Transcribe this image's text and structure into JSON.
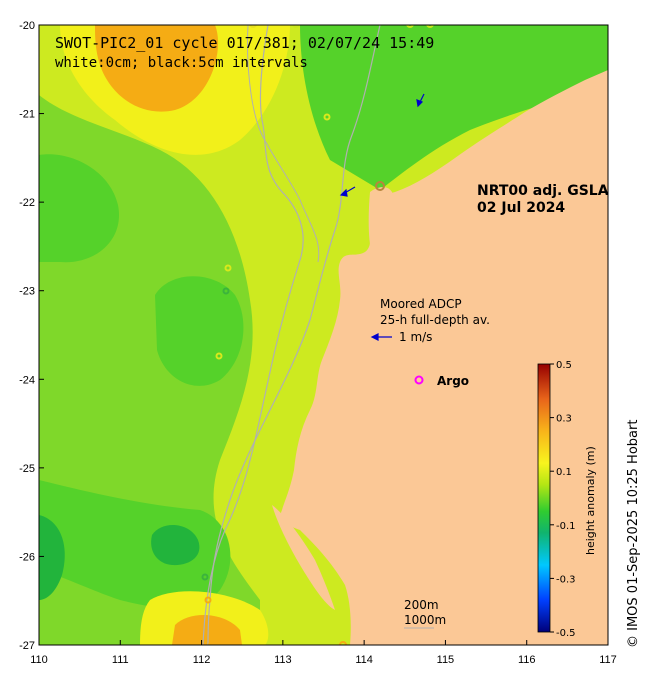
{
  "title": {
    "line1": "SWOT-PIC2_01 cycle 017/381; 02/07/24 15:49",
    "line2": "white:0cm; black:5cm intervals"
  },
  "product": {
    "line1": "NRT00 adj. GSLA",
    "line2": "02 Jul 2024"
  },
  "legend": {
    "adcp_line1": "Moored ADCP",
    "adcp_line2": "25-h full-depth av.",
    "arrow_label": "1 m/s",
    "argo_label": "Argo",
    "arrow_color": "#0000cc",
    "argo_color": "#ff00ff"
  },
  "contours": {
    "label_200": "200m",
    "label_1000": "1000m"
  },
  "colorbar": {
    "label": "height anomaly (m)",
    "ticks": [
      "0.5",
      "0.3",
      "0.1",
      "-0.1",
      "-0.3",
      "-0.5"
    ]
  },
  "copyright": "© IMOS 01-Sep-2025 10:25 Hobart",
  "axes": {
    "lon_ticks": [
      "110",
      "111",
      "112",
      "113",
      "114",
      "115",
      "116",
      "117"
    ],
    "lat_ticks": [
      "-20",
      "-21",
      "-22",
      "-23",
      "-24",
      "-25",
      "-26",
      "-27"
    ],
    "lon_range": [
      110,
      117
    ],
    "lat_range": [
      -27,
      -20
    ]
  },
  "colors": {
    "land": "#fbc896",
    "ocean_base": "#cdea20",
    "green": "#55d22a",
    "dark_green": "#22b43c",
    "yellow": "#f2f01a",
    "orange": "#f5ac14"
  }
}
